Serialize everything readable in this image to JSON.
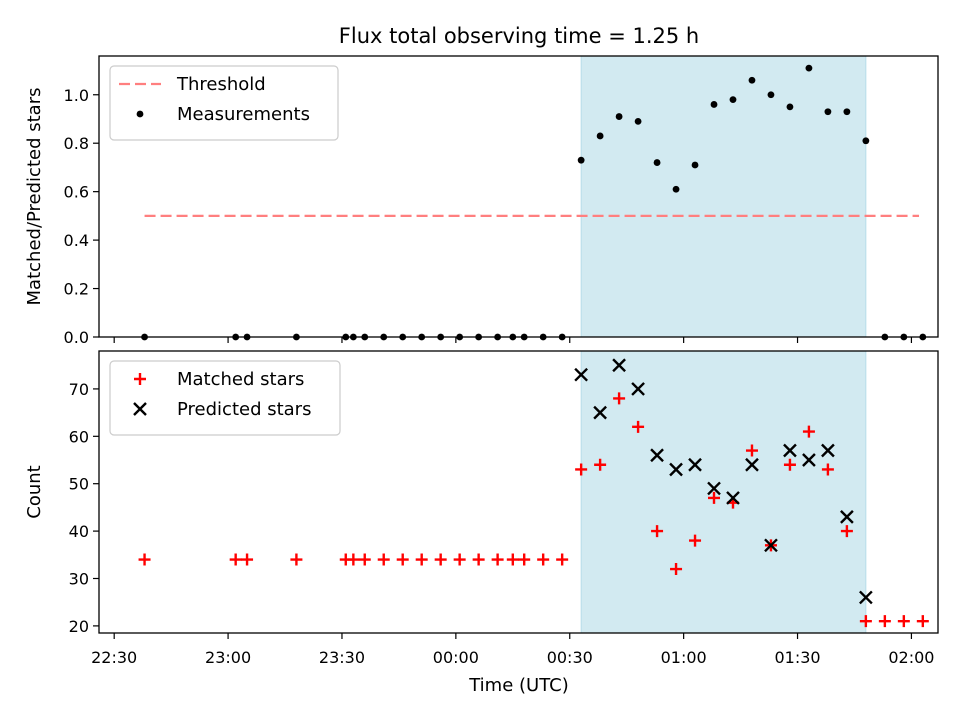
{
  "title": "Flux total observing time = 1.25 h",
  "colors": {
    "threshold": "#ff7f7f",
    "measurement": "#000000",
    "matched": "#ff0000",
    "predicted": "#000000",
    "highlight": "#add8e6"
  },
  "chart_data": [
    {
      "type": "scatter",
      "xlabel": "",
      "ylabel": "Matched/Predicted stars",
      "xlim": [
        "22:26",
        "02:07"
      ],
      "ylim": [
        0,
        1.16
      ],
      "yticks": [
        "0.0",
        "0.2",
        "0.4",
        "0.6",
        "0.8",
        "1.0"
      ],
      "legend_position": "top-left",
      "highlight_span": {
        "start": "00:33",
        "end": "01:48"
      },
      "threshold": {
        "name": "Threshold",
        "value": 0.5,
        "x_start": "22:38",
        "x_end": "02:02",
        "style": "dashed"
      },
      "series": [
        {
          "name": "Measurements",
          "marker": "dot",
          "points": [
            [
              "22:38",
              0
            ],
            [
              "23:02",
              0
            ],
            [
              "23:05",
              0
            ],
            [
              "23:18",
              0
            ],
            [
              "23:31",
              0
            ],
            [
              "23:33",
              0
            ],
            [
              "23:36",
              0
            ],
            [
              "23:41",
              0
            ],
            [
              "23:46",
              0
            ],
            [
              "23:51",
              0
            ],
            [
              "23:56",
              0
            ],
            [
              "00:01",
              0
            ],
            [
              "00:06",
              0
            ],
            [
              "00:11",
              0
            ],
            [
              "00:15",
              0
            ],
            [
              "00:18",
              0
            ],
            [
              "00:23",
              0
            ],
            [
              "00:28",
              0
            ],
            [
              "00:33",
              0.73
            ],
            [
              "00:38",
              0.83
            ],
            [
              "00:43",
              0.91
            ],
            [
              "00:48",
              0.89
            ],
            [
              "00:53",
              0.72
            ],
            [
              "00:58",
              0.61
            ],
            [
              "01:03",
              0.71
            ],
            [
              "01:08",
              0.96
            ],
            [
              "01:13",
              0.98
            ],
            [
              "01:18",
              1.06
            ],
            [
              "01:23",
              1.0
            ],
            [
              "01:28",
              0.95
            ],
            [
              "01:33",
              1.11
            ],
            [
              "01:38",
              0.93
            ],
            [
              "01:43",
              0.93
            ],
            [
              "01:48",
              0.81
            ],
            [
              "01:53",
              0
            ],
            [
              "01:58",
              0
            ],
            [
              "02:03",
              0
            ]
          ]
        }
      ]
    },
    {
      "type": "scatter",
      "xlabel": "Time (UTC)",
      "ylabel": "Count",
      "xlim": [
        "22:26",
        "02:07"
      ],
      "ylim": [
        18.5,
        78
      ],
      "yticks": [
        "20",
        "30",
        "40",
        "50",
        "60",
        "70"
      ],
      "xticks": [
        "22:30",
        "23:00",
        "23:30",
        "00:00",
        "00:30",
        "01:00",
        "01:30",
        "02:00"
      ],
      "legend_position": "top-left",
      "highlight_span": {
        "start": "00:33",
        "end": "01:48"
      },
      "series": [
        {
          "name": "Matched stars",
          "marker": "plus",
          "points": [
            [
              "22:38",
              34
            ],
            [
              "23:02",
              34
            ],
            [
              "23:05",
              34
            ],
            [
              "23:18",
              34
            ],
            [
              "23:31",
              34
            ],
            [
              "23:33",
              34
            ],
            [
              "23:36",
              34
            ],
            [
              "23:41",
              34
            ],
            [
              "23:46",
              34
            ],
            [
              "23:51",
              34
            ],
            [
              "23:56",
              34
            ],
            [
              "00:01",
              34
            ],
            [
              "00:06",
              34
            ],
            [
              "00:11",
              34
            ],
            [
              "00:15",
              34
            ],
            [
              "00:18",
              34
            ],
            [
              "00:23",
              34
            ],
            [
              "00:28",
              34
            ],
            [
              "00:33",
              53
            ],
            [
              "00:38",
              54
            ],
            [
              "00:43",
              68
            ],
            [
              "00:48",
              62
            ],
            [
              "00:53",
              40
            ],
            [
              "00:58",
              32
            ],
            [
              "01:03",
              38
            ],
            [
              "01:08",
              47
            ],
            [
              "01:13",
              46
            ],
            [
              "01:18",
              57
            ],
            [
              "01:23",
              37
            ],
            [
              "01:28",
              54
            ],
            [
              "01:33",
              61
            ],
            [
              "01:38",
              53
            ],
            [
              "01:43",
              40
            ],
            [
              "01:48",
              21
            ],
            [
              "01:53",
              21
            ],
            [
              "01:58",
              21
            ],
            [
              "02:03",
              21
            ]
          ]
        },
        {
          "name": "Predicted stars",
          "marker": "x",
          "points": [
            [
              "00:33",
              73
            ],
            [
              "00:38",
              65
            ],
            [
              "00:43",
              75
            ],
            [
              "00:48",
              70
            ],
            [
              "00:53",
              56
            ],
            [
              "00:58",
              53
            ],
            [
              "01:03",
              54
            ],
            [
              "01:08",
              49
            ],
            [
              "01:13",
              47
            ],
            [
              "01:18",
              54
            ],
            [
              "01:23",
              37
            ],
            [
              "01:28",
              57
            ],
            [
              "01:33",
              55
            ],
            [
              "01:38",
              57
            ],
            [
              "01:43",
              43
            ],
            [
              "01:48",
              26
            ]
          ]
        }
      ]
    }
  ]
}
